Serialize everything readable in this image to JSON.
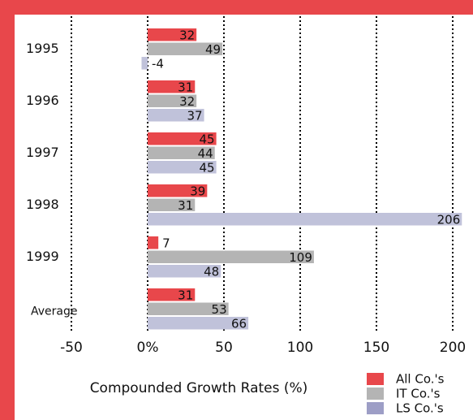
{
  "chart_data": {
    "type": "bar",
    "orientation": "horizontal",
    "categories": [
      "1995",
      "1996",
      "1997",
      "1998",
      "1999",
      "Average"
    ],
    "series": [
      {
        "name": "All Co.'s",
        "color": "#e8474b",
        "values": [
          32,
          31,
          45,
          39,
          7,
          31
        ]
      },
      {
        "name": "IT Co.'s",
        "color": "#b4b4b4",
        "values": [
          49,
          32,
          44,
          31,
          109,
          53
        ]
      },
      {
        "name": "LS Co.'s",
        "color": "#c0c2da",
        "legend_color": "#9d9ec6",
        "values": [
          -4,
          37,
          45,
          206,
          48,
          66
        ]
      }
    ],
    "xlabel": "Compounded Growth Rates (%)",
    "xlim": [
      -50,
      200
    ],
    "xticks": [
      -50,
      {
        "value": 0,
        "label": "0%"
      },
      50,
      100,
      150,
      200
    ],
    "grid": true,
    "grid_style": "dotted",
    "legend": "lower right"
  }
}
